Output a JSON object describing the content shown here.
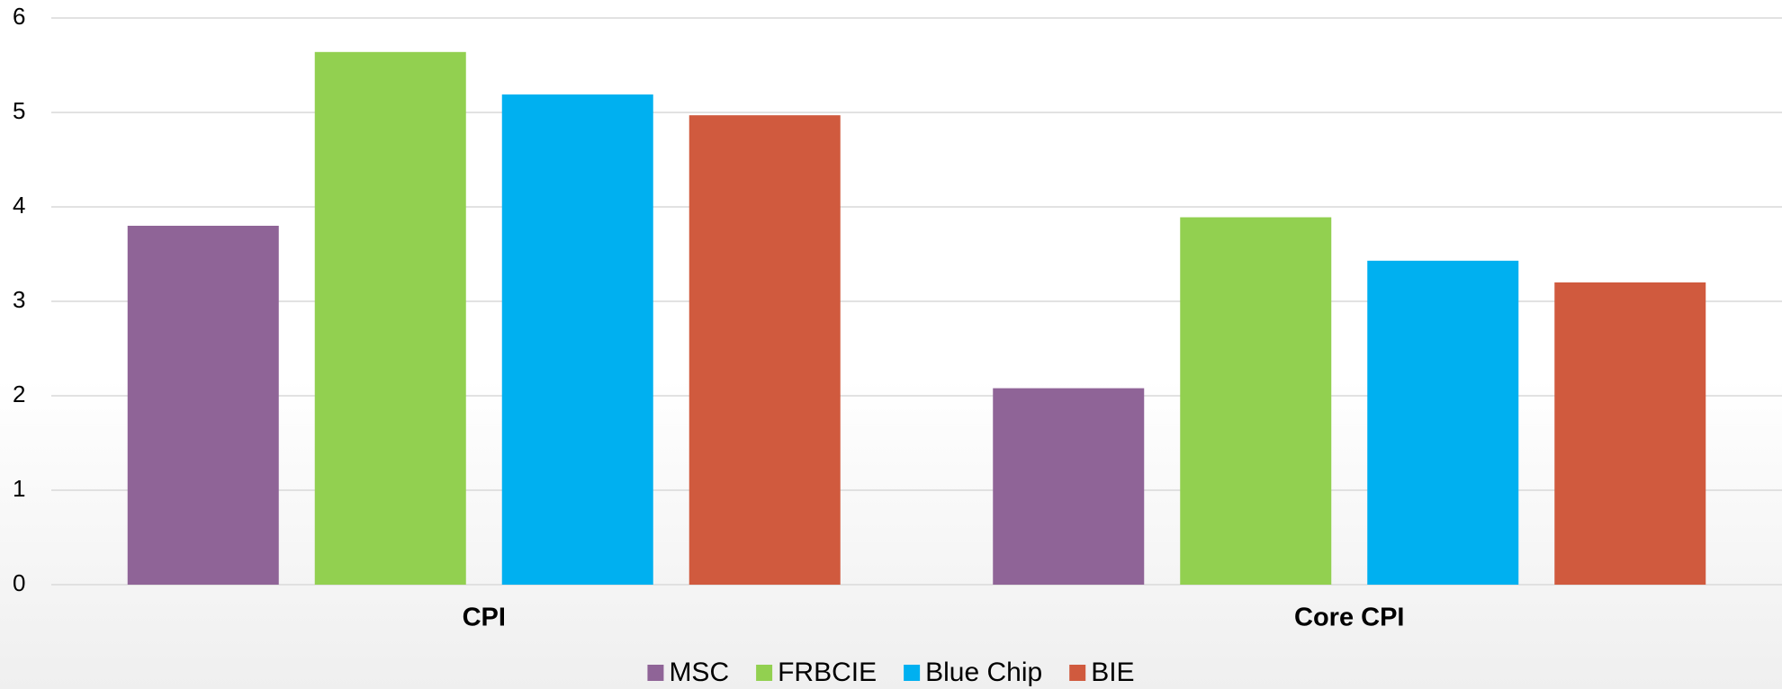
{
  "chart_data": {
    "type": "bar",
    "categories": [
      "CPI",
      "Core CPI"
    ],
    "series": [
      {
        "name": "MSC",
        "color": "#8f6497",
        "values": [
          3.8,
          2.08
        ]
      },
      {
        "name": "FRBCIE",
        "color": "#92d050",
        "values": [
          5.64,
          3.89
        ]
      },
      {
        "name": "Blue Chip",
        "color": "#00b0f0",
        "values": [
          5.19,
          3.43
        ]
      },
      {
        "name": "BIE",
        "color": "#d05a3e",
        "values": [
          4.97,
          3.2
        ]
      }
    ],
    "ylim": [
      0,
      6
    ],
    "yticks": [
      0,
      1,
      2,
      3,
      4,
      5,
      6
    ],
    "grid": true,
    "legend": "bottom"
  }
}
